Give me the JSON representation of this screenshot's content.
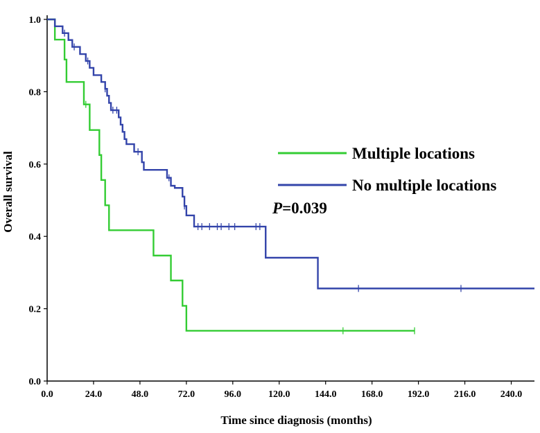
{
  "chart_data": {
    "type": "line",
    "subtype": "kaplan-meier",
    "title": "",
    "xlabel": "Time since diagnosis (months)",
    "ylabel": "Overall survival",
    "xlim": [
      0,
      252
    ],
    "ylim": [
      0,
      1.0
    ],
    "xticks": [
      "0.0",
      "24.0",
      "48.0",
      "72.0",
      "96.0",
      "120.0",
      "144.0",
      "168.0",
      "192.0",
      "216.0",
      "240.0"
    ],
    "xtick_values": [
      0,
      24,
      48,
      72,
      96,
      120,
      144,
      168,
      192,
      216,
      240
    ],
    "yticks": [
      "0.0",
      "0.2",
      "0.4",
      "0.6",
      "0.8",
      "1.0"
    ],
    "ytick_values": [
      0,
      0.2,
      0.4,
      0.6,
      0.8,
      1.0
    ],
    "grid": false,
    "legend_position": "right",
    "annotation": {
      "italic": "P",
      "rest": "=0.039"
    },
    "series": [
      {
        "name": "Multiple locations",
        "color": "#33cc33",
        "steps": [
          [
            0,
            1.0
          ],
          [
            4,
            0.944
          ],
          [
            9,
            0.889
          ],
          [
            10,
            0.827
          ],
          [
            19,
            0.765
          ],
          [
            22,
            0.694
          ],
          [
            27,
            0.625
          ],
          [
            28,
            0.556
          ],
          [
            30,
            0.486
          ],
          [
            32,
            0.417
          ],
          [
            55,
            0.347
          ],
          [
            64,
            0.278
          ],
          [
            70,
            0.208
          ],
          [
            72,
            0.139
          ],
          [
            190,
            0.139
          ]
        ],
        "censored": [
          [
            20,
            0.765
          ],
          [
            153,
            0.139
          ],
          [
            190,
            0.139
          ]
        ]
      },
      {
        "name": "No multiple locations",
        "color": "#3344aa",
        "steps": [
          [
            0,
            1.0
          ],
          [
            4,
            0.981
          ],
          [
            8,
            0.962
          ],
          [
            11,
            0.943
          ],
          [
            13,
            0.924
          ],
          [
            17,
            0.904
          ],
          [
            20,
            0.885
          ],
          [
            22,
            0.866
          ],
          [
            24,
            0.846
          ],
          [
            28,
            0.827
          ],
          [
            30,
            0.808
          ],
          [
            31,
            0.789
          ],
          [
            32,
            0.769
          ],
          [
            33,
            0.749
          ],
          [
            37,
            0.729
          ],
          [
            38,
            0.709
          ],
          [
            39,
            0.689
          ],
          [
            40,
            0.669
          ],
          [
            41,
            0.655
          ],
          [
            45,
            0.634
          ],
          [
            49,
            0.605
          ],
          [
            50,
            0.584
          ],
          [
            62,
            0.562
          ],
          [
            64,
            0.54
          ],
          [
            66,
            0.534
          ],
          [
            70,
            0.51
          ],
          [
            71,
            0.484
          ],
          [
            72,
            0.458
          ],
          [
            76,
            0.427
          ],
          [
            113,
            0.341
          ],
          [
            140,
            0.256
          ],
          [
            252,
            0.256
          ]
        ],
        "censored": [
          [
            9,
            0.962
          ],
          [
            14,
            0.924
          ],
          [
            21,
            0.885
          ],
          [
            30,
            0.808
          ],
          [
            34,
            0.749
          ],
          [
            36,
            0.749
          ],
          [
            47,
            0.634
          ],
          [
            63,
            0.562
          ],
          [
            71,
            0.484
          ],
          [
            78,
            0.427
          ],
          [
            80,
            0.427
          ],
          [
            84,
            0.427
          ],
          [
            88,
            0.427
          ],
          [
            90,
            0.427
          ],
          [
            94,
            0.427
          ],
          [
            97,
            0.427
          ],
          [
            108,
            0.427
          ],
          [
            110,
            0.427
          ],
          [
            161,
            0.256
          ],
          [
            214,
            0.256
          ]
        ]
      }
    ]
  }
}
